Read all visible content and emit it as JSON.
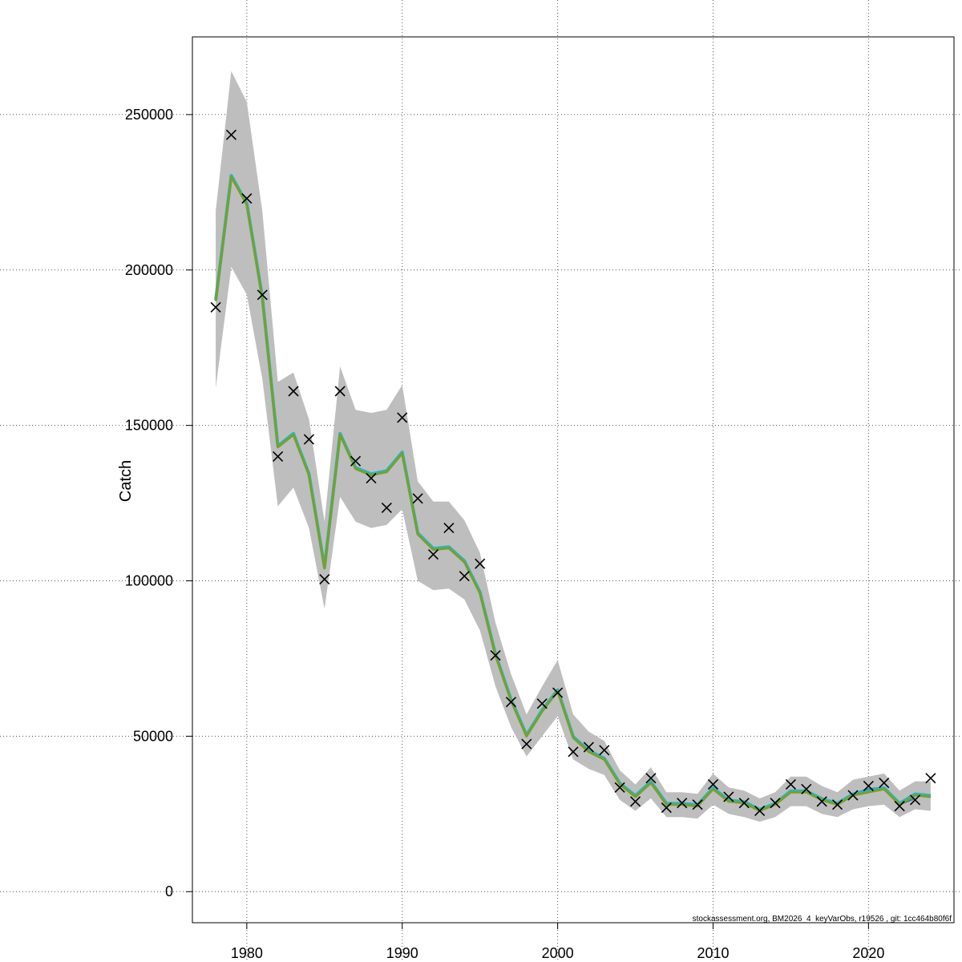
{
  "chart_data": {
    "type": "line",
    "title": "",
    "xlabel": "",
    "ylabel": "Catch",
    "xlim": [
      1976.5,
      2025.5
    ],
    "ylim": [
      -10000,
      275000
    ],
    "grid": true,
    "x_ticks": [
      1980,
      1990,
      2000,
      2010,
      2020
    ],
    "y_ticks": [
      0,
      50000,
      100000,
      150000,
      200000,
      250000
    ],
    "footer": "stockassessment.org, BM2026_4_keyVarObs, r19526 , git: 1cc464b80f6f",
    "colors": {
      "band": "#bebebe",
      "fit_line": "#78a02a",
      "fit_shadow": "#25b6c6",
      "observed_marker": "#000000",
      "retro_lines": [
        "#1f3f9a",
        "#2a7fc0",
        "#5a2a8a",
        "#000000"
      ]
    },
    "observed": {
      "x": [
        1978,
        1979,
        1980,
        1981,
        1982,
        1983,
        1984,
        1985,
        1986,
        1987,
        1988,
        1989,
        1990,
        1991,
        1992,
        1993,
        1994,
        1995,
        1996,
        1997,
        1998,
        1999,
        2000,
        2001,
        2002,
        2003,
        2004,
        2005,
        2006,
        2007,
        2008,
        2009,
        2010,
        2011,
        2012,
        2013,
        2014,
        2015,
        2016,
        2017,
        2018,
        2019,
        2020,
        2021,
        2022,
        2023,
        2024
      ],
      "y": [
        188000,
        243500,
        223000,
        192000,
        140000,
        161000,
        145500,
        100500,
        161000,
        138500,
        133000,
        123500,
        152500,
        126500,
        108500,
        117000,
        101500,
        105500,
        76000,
        61000,
        47500,
        60500,
        64000,
        45000,
        46500,
        45500,
        33500,
        29000,
        36500,
        27000,
        28500,
        28000,
        34500,
        30500,
        28500,
        26000,
        28500,
        34500,
        33000,
        29000,
        28000,
        31000,
        34000,
        35000,
        27500,
        29500,
        36500
      ]
    },
    "fitted": {
      "x": [
        1978,
        1979,
        1980,
        1981,
        1982,
        1983,
        1984,
        1985,
        1986,
        1987,
        1988,
        1989,
        1990,
        1991,
        1992,
        1993,
        1994,
        1995,
        1996,
        1997,
        1998,
        1999,
        2000,
        2001,
        2002,
        2003,
        2004,
        2005,
        2006,
        2007,
        2008,
        2009,
        2010,
        2011,
        2012,
        2013,
        2014,
        2015,
        2016,
        2017,
        2018,
        2019,
        2020,
        2021,
        2022,
        2023,
        2024
      ],
      "y": [
        190000,
        230000,
        221000,
        191000,
        143000,
        147000,
        134000,
        104000,
        147000,
        136000,
        134000,
        135000,
        141000,
        115000,
        110000,
        110500,
        106000,
        96000,
        76000,
        61500,
        50000,
        58000,
        64500,
        49500,
        45000,
        42500,
        34500,
        30500,
        35000,
        28000,
        28000,
        27500,
        33000,
        29000,
        28500,
        26000,
        28000,
        32000,
        32000,
        29500,
        28000,
        31000,
        32000,
        33000,
        28000,
        31000,
        30500
      ]
    },
    "band": {
      "lower": [
        162000,
        201000,
        192000,
        165000,
        124000,
        130000,
        117000,
        91000,
        127000,
        119000,
        117000,
        118000,
        123000,
        100000,
        97000,
        97500,
        94000,
        84000,
        66000,
        53000,
        43500,
        50000,
        56500,
        42500,
        39500,
        37500,
        29500,
        26000,
        30000,
        24000,
        24000,
        23500,
        28000,
        25000,
        24000,
        22500,
        24000,
        27500,
        27500,
        25000,
        24000,
        26500,
        27500,
        28000,
        24000,
        26500,
        26000
      ],
      "upper": [
        219000,
        264000,
        254000,
        219000,
        164000,
        167000,
        152000,
        119000,
        169000,
        155000,
        154000,
        155000,
        163000,
        132000,
        125500,
        125500,
        119500,
        109000,
        86500,
        70000,
        57000,
        66000,
        74500,
        57000,
        51500,
        48500,
        39000,
        34500,
        40000,
        32000,
        32000,
        31500,
        38000,
        33500,
        32500,
        30000,
        32000,
        37000,
        37000,
        34000,
        32000,
        36000,
        37000,
        38000,
        32500,
        35500,
        35500
      ]
    },
    "retro_segments": [
      {
        "x": [
          2018,
          2019,
          2020,
          2021,
          2022
        ],
        "y": [
          28500,
          31500,
          33000,
          33500,
          27500
        ]
      },
      {
        "x": [
          2019,
          2020,
          2021,
          2022,
          2023
        ],
        "y": [
          31500,
          33000,
          33500,
          28000,
          30000
        ]
      },
      {
        "x": [
          2020,
          2021,
          2022,
          2023
        ],
        "y": [
          32500,
          33500,
          28500,
          31500
        ]
      },
      {
        "x": [
          2021,
          2022,
          2023,
          2024
        ],
        "y": [
          33000,
          28000,
          31000,
          30500
        ]
      }
    ]
  }
}
